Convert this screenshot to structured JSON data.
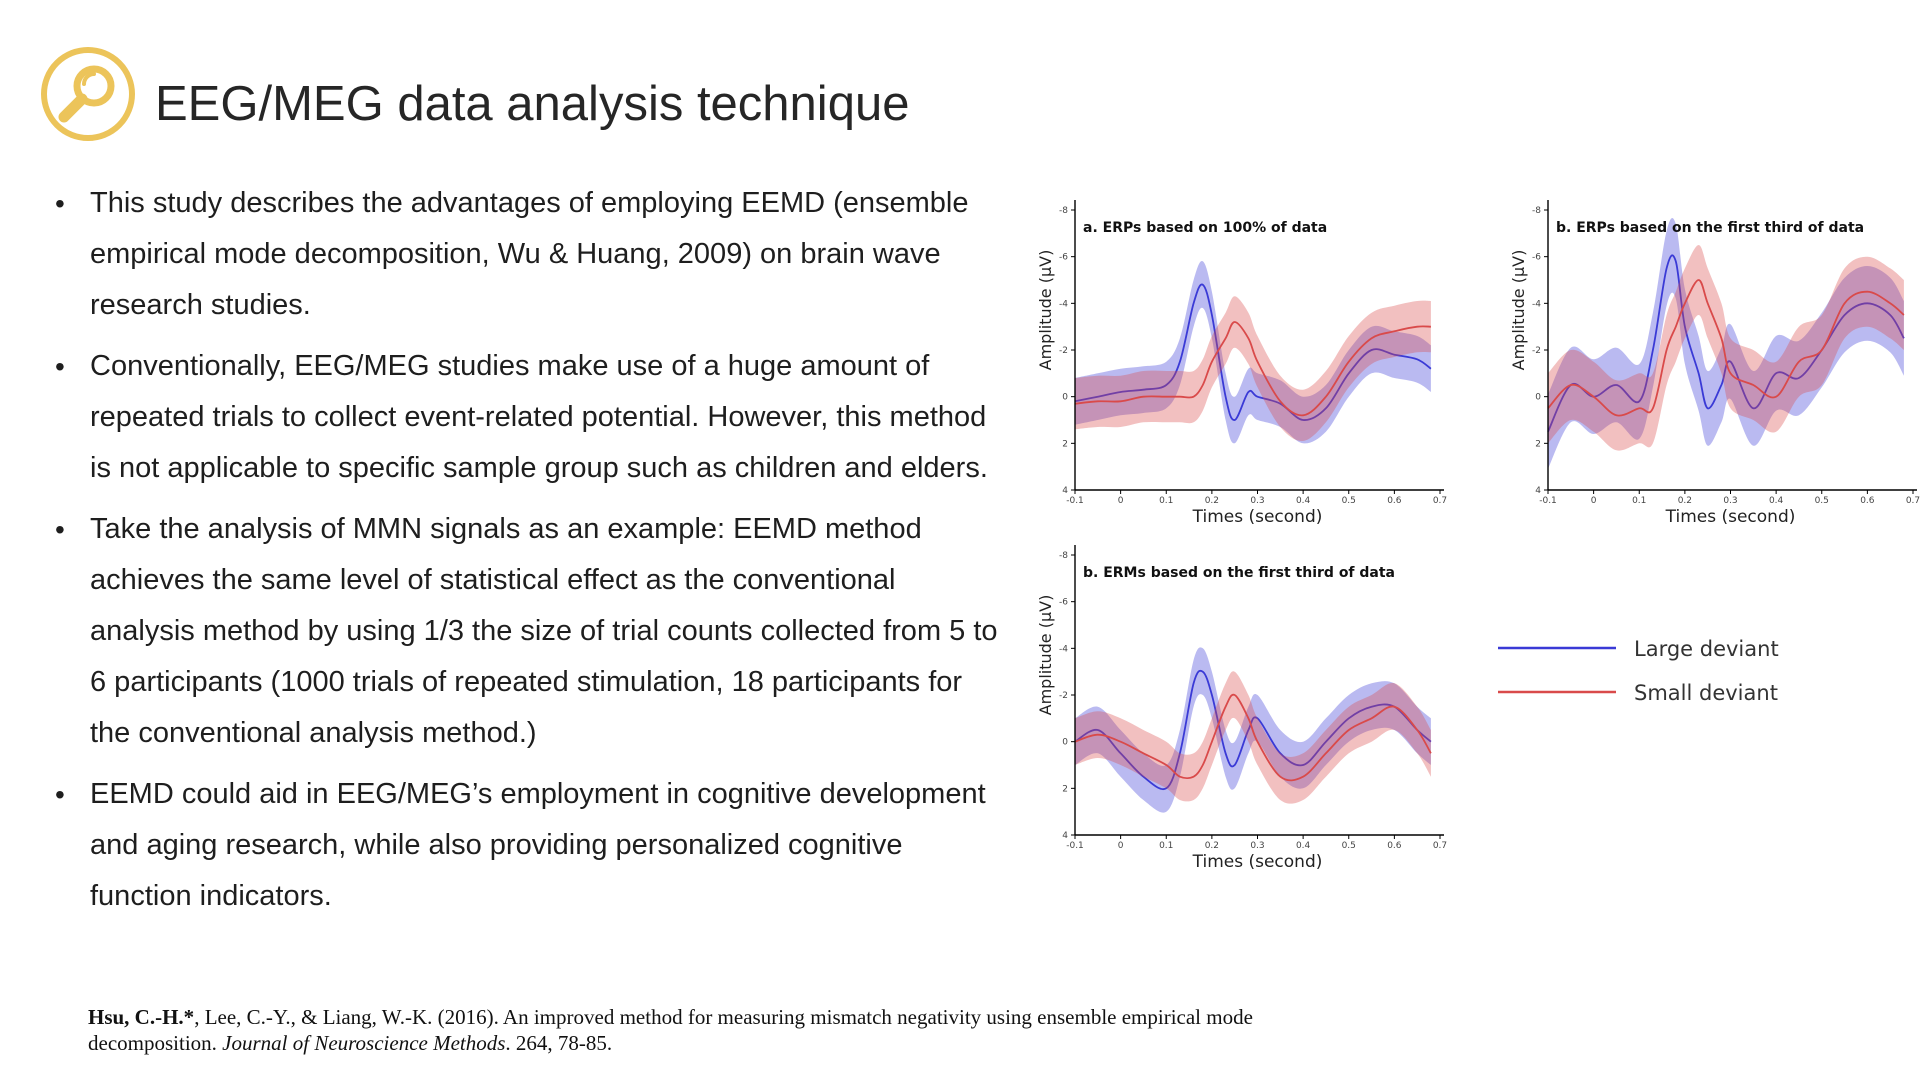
{
  "slide": {
    "title": "EEG/MEG data analysis technique",
    "icon": "magnifier-icon",
    "accent_color": "#ecc45a"
  },
  "bullets": [
    "This study describes the advantages of employing EEMD (ensemble empirical mode decomposition, Wu & Huang, 2009) on brain wave research studies.",
    "Conventionally, EEG/MEG studies make use of a huge amount of repeated trials to collect event-related potential. However, this method is not applicable to specific sample group such as children and elders.",
    "Take the analysis of MMN signals as an example: EEMD method achieves the same level of statistical effect as the conventional analysis method by using 1/3 the size of trial counts collected from 5 to 6 participants (1000 trials of repeated stimulation, 18 participants for the conventional analysis method.)",
    "EEMD could aid in EEG/MEG’s employment in cognitive development and aging research, while also providing personalized cognitive function indicators."
  ],
  "citation": {
    "author_bold": "Hsu, C.-H.*",
    "rest_before_journal": ", Lee, C.-Y., & Liang, W.-K. (2016). An improved method for measuring mismatch negativity using ensemble empirical mode decomposition. ",
    "journal": "Journal of Neuroscience Methods",
    "rest_after_journal": ". 264, 78-85."
  },
  "legend": {
    "items": [
      {
        "label": "Large deviant",
        "color": "#3a3ad6"
      },
      {
        "label": "Small deviant",
        "color": "#d94a4a"
      }
    ]
  },
  "chart_data": [
    {
      "type": "line",
      "title": "a. ERPs based on 100% of data",
      "xlabel": "Times (second)",
      "ylabel": "Amplitude (µV)",
      "xlim": [
        -0.1,
        0.7
      ],
      "ylim": [
        4,
        -8
      ],
      "y_inverted": true,
      "xticks": [
        "-0.1",
        "0",
        "0.1",
        "0.2",
        "0.3",
        "0.4",
        "0.5",
        "0.6",
        "0.7"
      ],
      "yticks": [
        "-8",
        "-6",
        "-4",
        "-2",
        "0",
        "2",
        "4"
      ],
      "x": [
        -0.1,
        -0.05,
        0,
        0.05,
        0.1,
        0.13,
        0.16,
        0.18,
        0.2,
        0.23,
        0.25,
        0.28,
        0.3,
        0.35,
        0.4,
        0.45,
        0.5,
        0.55,
        0.6,
        0.65,
        0.68
      ],
      "series": [
        {
          "name": "Large deviant",
          "color": "#3a3ad6",
          "values": [
            0.2,
            0.0,
            -0.2,
            -0.3,
            -0.5,
            -1.5,
            -4.0,
            -4.8,
            -3.5,
            0.0,
            1.0,
            -0.2,
            0.0,
            0.3,
            1.0,
            0.5,
            -1.0,
            -2.0,
            -1.8,
            -1.6,
            -1.2
          ],
          "band": 1.0
        },
        {
          "name": "Small deviant",
          "color": "#d94a4a",
          "values": [
            0.3,
            0.2,
            0.2,
            0.0,
            0.0,
            0.0,
            0.0,
            -0.5,
            -1.5,
            -2.5,
            -3.2,
            -2.5,
            -1.5,
            0.2,
            0.8,
            0.0,
            -1.5,
            -2.5,
            -2.8,
            -3.0,
            -3.0
          ],
          "band": 1.1
        }
      ]
    },
    {
      "type": "line",
      "title": "b. ERPs based on the first third of data",
      "xlabel": "Times (second)",
      "ylabel": "Amplitude (µV)",
      "xlim": [
        -0.1,
        0.7
      ],
      "ylim": [
        4,
        -8
      ],
      "y_inverted": true,
      "xticks": [
        "-0.1",
        "0",
        "0.1",
        "0.2",
        "0.3",
        "0.4",
        "0.5",
        "0.6",
        "0.7"
      ],
      "yticks": [
        "-8",
        "-6",
        "-4",
        "-2",
        "0",
        "2",
        "4"
      ],
      "x": [
        -0.1,
        -0.05,
        0,
        0.05,
        0.1,
        0.13,
        0.16,
        0.18,
        0.2,
        0.23,
        0.25,
        0.28,
        0.3,
        0.35,
        0.4,
        0.45,
        0.5,
        0.55,
        0.6,
        0.65,
        0.68
      ],
      "series": [
        {
          "name": "Large deviant",
          "color": "#3a3ad6",
          "values": [
            1.5,
            -0.5,
            0.0,
            -0.5,
            0.2,
            -2.0,
            -5.5,
            -5.8,
            -3.0,
            -1.0,
            0.5,
            -0.5,
            -1.5,
            0.5,
            -1.0,
            -0.8,
            -2.0,
            -3.5,
            -4.0,
            -3.5,
            -2.5
          ],
          "band": 1.6
        },
        {
          "name": "Small deviant",
          "color": "#d94a4a",
          "values": [
            0.5,
            -0.5,
            0.0,
            0.8,
            0.5,
            0.5,
            -2.0,
            -3.0,
            -4.0,
            -5.0,
            -4.0,
            -2.5,
            -1.0,
            -0.5,
            0.0,
            -1.5,
            -2.0,
            -4.0,
            -4.5,
            -4.0,
            -3.5
          ],
          "band": 1.5
        }
      ]
    },
    {
      "type": "line",
      "title": "b. ERMs based on the first third of data",
      "xlabel": "Times (second)",
      "ylabel": "Amplitude (µV)",
      "xlim": [
        -0.1,
        0.7
      ],
      "ylim": [
        4,
        -8
      ],
      "y_inverted": true,
      "xticks": [
        "-0.1",
        "0",
        "0.1",
        "0.2",
        "0.3",
        "0.4",
        "0.5",
        "0.6",
        "0.7"
      ],
      "yticks": [
        "-8",
        "-6",
        "-4",
        "-2",
        "0",
        "2",
        "4"
      ],
      "x": [
        -0.1,
        -0.05,
        0,
        0.05,
        0.1,
        0.13,
        0.16,
        0.18,
        0.2,
        0.23,
        0.25,
        0.28,
        0.3,
        0.35,
        0.4,
        0.45,
        0.5,
        0.55,
        0.6,
        0.65,
        0.68
      ],
      "series": [
        {
          "name": "Large deviant",
          "color": "#3a3ad6",
          "values": [
            0.0,
            -0.5,
            0.5,
            1.5,
            2.0,
            0.5,
            -2.5,
            -3.0,
            -2.0,
            0.5,
            1.0,
            -0.5,
            -1.0,
            0.5,
            1.0,
            0.0,
            -1.0,
            -1.5,
            -1.5,
            -0.5,
            0.0
          ],
          "band": 1.0
        },
        {
          "name": "Small deviant",
          "color": "#d94a4a",
          "values": [
            0.0,
            -0.3,
            0.0,
            0.5,
            1.0,
            1.5,
            1.5,
            1.0,
            0.0,
            -1.5,
            -2.0,
            -1.0,
            0.0,
            1.5,
            1.5,
            0.5,
            -0.5,
            -1.0,
            -1.5,
            -0.5,
            0.5
          ],
          "band": 1.0
        }
      ]
    }
  ]
}
